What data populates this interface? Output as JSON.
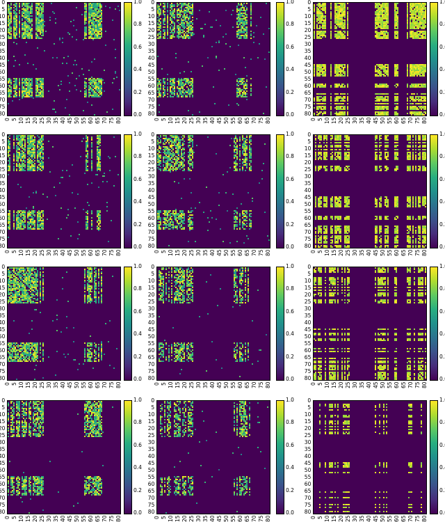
{
  "chart_data": {
    "type": "heatmap",
    "layout": "4 rows x 3 columns",
    "matrix_size": 81,
    "axis_ticks": [
      0,
      5,
      10,
      15,
      20,
      25,
      30,
      35,
      40,
      45,
      50,
      55,
      60,
      65,
      70,
      75,
      80
    ],
    "colorbar": {
      "colormap": "viridis",
      "range": [
        0.0,
        1.0
      ],
      "ticks": [
        "0.0",
        "0.2",
        "0.4",
        "0.6",
        "0.8",
        "1.0"
      ]
    },
    "panels_by_column": [
      {
        "column": 1,
        "style": "continuous",
        "blocks": [
          [
            0,
            25,
            0,
            25
          ],
          [
            0,
            25,
            55,
            67
          ],
          [
            54,
            67,
            0,
            25
          ],
          [
            54,
            67,
            55,
            67
          ]
        ],
        "block_density_per_row": [
          0.9,
          0.85,
          0.8,
          0.75
        ],
        "value_range": [
          0.5,
          1.0
        ],
        "off_block_density_per_row": [
          0.02,
          0.012,
          0.01,
          0.004
        ]
      },
      {
        "column": 2,
        "style": "continuous",
        "blocks": [
          [
            0,
            25,
            0,
            25
          ],
          [
            0,
            25,
            55,
            67
          ],
          [
            54,
            67,
            0,
            25
          ],
          [
            54,
            67,
            55,
            67
          ]
        ],
        "block_density_per_row": [
          0.75,
          0.7,
          0.65,
          0.6
        ],
        "value_range": [
          0.5,
          1.0
        ],
        "off_block_density_per_row": [
          0.012,
          0.01,
          0.008,
          0.005
        ]
      },
      {
        "column": 3,
        "style": "binary",
        "row_bands": [
          [
            0,
            25
          ],
          [
            44,
            52
          ],
          [
            58,
            60
          ],
          [
            65,
            80
          ]
        ],
        "col_bands": [
          [
            0,
            25
          ],
          [
            44,
            53
          ],
          [
            58,
            60
          ],
          [
            67,
            80
          ]
        ],
        "band_density_per_row": [
          0.75,
          0.65,
          0.5,
          0.25
        ],
        "value_range": [
          0.8,
          1.0
        ]
      }
    ]
  }
}
